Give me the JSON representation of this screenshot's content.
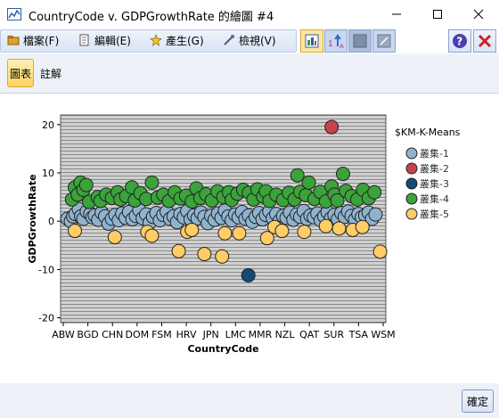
{
  "window": {
    "title": "CountryCode v. GDPGrowthRate 的繪圖 #4"
  },
  "menu": {
    "items": [
      {
        "label": "檔案(F)",
        "icon": "folder-icon"
      },
      {
        "label": "編輯(E)",
        "icon": "edit-icon"
      },
      {
        "label": "產生(G)",
        "icon": "generate-icon"
      },
      {
        "label": "檢視(V)",
        "icon": "view-icon"
      }
    ],
    "tools": [
      "chart-options-icon",
      "sort-icon",
      "view-toggle-icon",
      "resize-icon"
    ],
    "help_icon": "help-icon",
    "close_icon": "close-icon"
  },
  "tabs": [
    {
      "label": "圖表",
      "active": true
    },
    {
      "label": "註解",
      "active": false
    }
  ],
  "footer": {
    "ok_label": "確定"
  },
  "chart_data": {
    "type": "scatter",
    "title": "",
    "xlabel": "CountryCode",
    "ylabel": "GDPGrowthRate",
    "ylim": [
      -21,
      22
    ],
    "yticks": [
      -20,
      -10,
      0,
      10,
      20
    ],
    "xticks": [
      "ABW",
      "BGD",
      "CHN",
      "DOM",
      "FSM",
      "HRV",
      "JPN",
      "LMC",
      "MMR",
      "NZL",
      "QAT",
      "SUR",
      "TSA",
      "WSM"
    ],
    "grid": true,
    "legend": {
      "title": "$KM-K-Means",
      "placement": "right"
    },
    "colors": {
      "叢集-1": "#8fb3cf",
      "叢集-2": "#c9414a",
      "叢集-3": "#134a7a",
      "叢集-4": "#3aa33a",
      "叢集-5": "#ffcc66"
    },
    "series": [
      {
        "name": "叢集-1",
        "points": [
          [
            0.2,
            0.5
          ],
          [
            0.8,
            0.0
          ],
          [
            1.2,
            1.0
          ],
          [
            1.6,
            1.5
          ],
          [
            2.2,
            2.5
          ],
          [
            2.6,
            1.0
          ],
          [
            3.0,
            0.5
          ],
          [
            3.6,
            2.0
          ],
          [
            4.2,
            1.5
          ],
          [
            4.6,
            0.8
          ],
          [
            5.0,
            1.2
          ],
          [
            5.6,
            0.3
          ],
          [
            6.2,
            1.8
          ],
          [
            6.8,
            1.0
          ],
          [
            7.4,
            -0.5
          ],
          [
            8.0,
            0.5
          ],
          [
            8.6,
            1.3
          ],
          [
            9.2,
            0.2
          ],
          [
            9.8,
            1.6
          ],
          [
            10.4,
            0.7
          ],
          [
            11.0,
            1.9
          ],
          [
            11.6,
            0.4
          ],
          [
            12.2,
            1.1
          ],
          [
            12.8,
            2.3
          ],
          [
            13.4,
            0.6
          ],
          [
            14.0,
            1.4
          ],
          [
            14.6,
            -0.3
          ],
          [
            15.2,
            0.9
          ],
          [
            15.8,
            1.7
          ],
          [
            16.4,
            0.2
          ],
          [
            17.0,
            1.3
          ],
          [
            17.6,
            2.0
          ],
          [
            18.2,
            0.5
          ],
          [
            18.8,
            1.0
          ],
          [
            19.4,
            -0.2
          ],
          [
            20.0,
            1.5
          ],
          [
            20.6,
            0.8
          ],
          [
            21.2,
            2.1
          ],
          [
            21.8,
            0.4
          ],
          [
            22.4,
            1.2
          ],
          [
            23.0,
            0.6
          ],
          [
            23.6,
            1.8
          ],
          [
            24.2,
            0.9
          ],
          [
            24.8,
            -0.4
          ],
          [
            25.4,
            1.1
          ],
          [
            26.0,
            0.3
          ],
          [
            26.6,
            1.6
          ],
          [
            27.2,
            0.7
          ],
          [
            27.8,
            2.2
          ],
          [
            28.4,
            1.0
          ],
          [
            29.0,
            0.2
          ],
          [
            29.6,
            1.4
          ],
          [
            30.2,
            0.8
          ],
          [
            30.8,
            1.9
          ],
          [
            31.4,
            0.5
          ],
          [
            32.0,
            1.2
          ],
          [
            32.6,
            -0.1
          ],
          [
            33.2,
            0.9
          ],
          [
            33.8,
            1.7
          ],
          [
            34.4,
            0.4
          ],
          [
            35.0,
            1.3
          ],
          [
            35.6,
            2.0
          ],
          [
            36.2,
            0.6
          ],
          [
            36.8,
            1.5
          ],
          [
            37.4,
            0.1
          ],
          [
            38.0,
            1.1
          ],
          [
            38.6,
            0.7
          ],
          [
            39.2,
            1.8
          ],
          [
            39.8,
            0.3
          ],
          [
            40.4,
            1.4
          ],
          [
            41.0,
            0.9
          ],
          [
            41.6,
            2.1
          ],
          [
            42.2,
            0.5
          ],
          [
            42.8,
            1.2
          ],
          [
            43.4,
            0.8
          ],
          [
            44.0,
            1.6
          ],
          [
            44.6,
            0.2
          ],
          [
            45.2,
            1.0
          ],
          [
            45.8,
            1.9
          ],
          [
            46.4,
            0.6
          ],
          [
            47.0,
            1.3
          ],
          [
            47.6,
            0.4
          ],
          [
            48.2,
            1.7
          ],
          [
            48.8,
            0.9
          ],
          [
            49.4,
            2.0
          ],
          [
            50.0,
            1.1
          ],
          [
            50.6,
            0.3
          ],
          [
            51.2,
            1.5
          ],
          [
            51.8,
            0.8
          ],
          [
            52.4,
            1.2
          ],
          [
            53.0,
            1.8
          ],
          [
            53.6,
            0.5
          ],
          [
            54.2,
            1.4
          ]
        ]
      },
      {
        "name": "叢集-2",
        "points": [
          [
            46.5,
            19.5
          ]
        ]
      },
      {
        "name": "叢集-3",
        "points": [
          [
            31.9,
            -11.2
          ]
        ]
      },
      {
        "name": "叢集-4",
        "points": [
          [
            1.0,
            4.5
          ],
          [
            1.5,
            7.0
          ],
          [
            2.0,
            5.5
          ],
          [
            2.5,
            8.0
          ],
          [
            3.0,
            6.5
          ],
          [
            3.5,
            7.5
          ],
          [
            4.0,
            4.0
          ],
          [
            5.5,
            5.0
          ],
          [
            6.0,
            4.2
          ],
          [
            7.0,
            5.5
          ],
          [
            8.0,
            4.8
          ],
          [
            9.0,
            6.0
          ],
          [
            9.5,
            4.5
          ],
          [
            10.5,
            5.2
          ],
          [
            11.5,
            7.0
          ],
          [
            12.0,
            4.3
          ],
          [
            13.0,
            5.8
          ],
          [
            14.0,
            4.6
          ],
          [
            15.0,
            8.0
          ],
          [
            16.0,
            4.9
          ],
          [
            17.0,
            5.5
          ],
          [
            18.0,
            4.2
          ],
          [
            19.0,
            6.0
          ],
          [
            20.0,
            4.7
          ],
          [
            21.0,
            5.3
          ],
          [
            22.0,
            4.1
          ],
          [
            22.8,
            6.8
          ],
          [
            23.5,
            4.8
          ],
          [
            24.5,
            5.6
          ],
          [
            25.5,
            4.3
          ],
          [
            26.5,
            6.2
          ],
          [
            27.5,
            5.0
          ],
          [
            28.5,
            6.0
          ],
          [
            29.0,
            4.4
          ],
          [
            30.0,
            5.7
          ],
          [
            31.0,
            6.5
          ],
          [
            32.0,
            5.9
          ],
          [
            32.8,
            4.5
          ],
          [
            33.5,
            6.6
          ],
          [
            34.5,
            5.1
          ],
          [
            35.0,
            6.2
          ],
          [
            35.6,
            4.2
          ],
          [
            36.8,
            5.5
          ],
          [
            38.0,
            4.4
          ],
          [
            39.0,
            5.9
          ],
          [
            40.0,
            4.5
          ],
          [
            40.5,
            9.5
          ],
          [
            41.0,
            6.1
          ],
          [
            42.0,
            5.4
          ],
          [
            42.5,
            8.0
          ],
          [
            43.5,
            4.6
          ],
          [
            44.5,
            6.1
          ],
          [
            45.5,
            4.1
          ],
          [
            46.5,
            7.2
          ],
          [
            47.0,
            5.5
          ],
          [
            47.5,
            4.3
          ],
          [
            48.5,
            9.8
          ],
          [
            49.0,
            6.3
          ],
          [
            50.0,
            5.2
          ],
          [
            51.0,
            4.5
          ],
          [
            52.0,
            6.5
          ],
          [
            53.0,
            4.8
          ],
          [
            54.0,
            6.0
          ]
        ]
      },
      {
        "name": "叢集-5",
        "points": [
          [
            1.5,
            -2.0
          ],
          [
            8.5,
            -3.3
          ],
          [
            14.2,
            -2.2
          ],
          [
            15.0,
            -3.0
          ],
          [
            19.7,
            -6.2
          ],
          [
            21.2,
            -2.2
          ],
          [
            22.0,
            -1.8
          ],
          [
            24.2,
            -6.8
          ],
          [
            27.3,
            -7.3
          ],
          [
            27.8,
            -2.5
          ],
          [
            30.3,
            -2.5
          ],
          [
            35.2,
            -3.5
          ],
          [
            36.5,
            -1.2
          ],
          [
            37.8,
            -2.0
          ],
          [
            41.7,
            -2.2
          ],
          [
            45.5,
            -1.0
          ],
          [
            47.8,
            -1.5
          ],
          [
            50.2,
            -1.8
          ],
          [
            51.9,
            -1.2
          ],
          [
            55.0,
            -6.3
          ]
        ]
      }
    ]
  }
}
